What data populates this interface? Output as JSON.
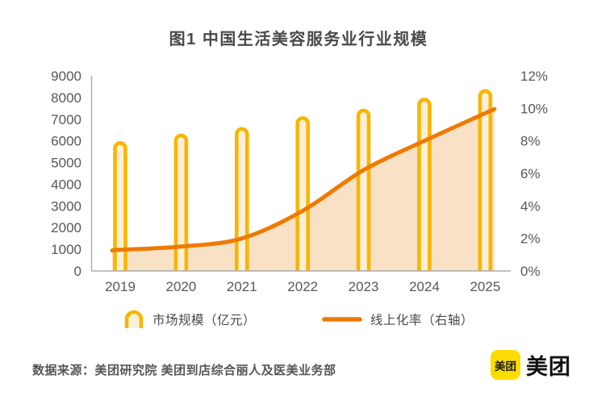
{
  "page": {
    "background": "#FFFFFF"
  },
  "header": {
    "title": "图1  中国生活美容服务业行业规模"
  },
  "chart_data": {
    "type": "combo",
    "title": "图1  中国生活美容服务业行业规模",
    "categories": [
      "2019",
      "2020",
      "2021",
      "2022",
      "2023",
      "2024",
      "2025"
    ],
    "series": [
      {
        "name": "市场规模（亿元）",
        "type": "bar",
        "axis": "left",
        "unit": "亿元",
        "values": [
          5900,
          6250,
          6550,
          7050,
          7400,
          7900,
          8300
        ]
      },
      {
        "name": "线上化率（右轴）",
        "type": "line",
        "axis": "right",
        "unit": "%",
        "values": [
          1.3,
          1.5,
          2.0,
          3.7,
          6.2,
          8.0,
          9.7
        ]
      }
    ],
    "left_axis": {
      "min": 0,
      "max": 9000,
      "step": 1000,
      "tick_labels": [
        "0",
        "1000",
        "2000",
        "3000",
        "4000",
        "5000",
        "6000",
        "7000",
        "8000",
        "9000"
      ]
    },
    "right_axis": {
      "min": 0,
      "max": 12,
      "step": 2,
      "tick_labels": [
        "0%",
        "2%",
        "4%",
        "6%",
        "8%",
        "10%",
        "12%"
      ]
    },
    "grid": false,
    "legend_position": "bottom"
  },
  "legend": {
    "items": [
      {
        "label": "市场规模（亿元）",
        "swatch": "bar-arch-icon"
      },
      {
        "label": "线上化率（右轴）",
        "swatch": "line-icon"
      }
    ]
  },
  "footer": {
    "source": "数据来源：美团研究院  美团到店综合丽人及医美业务部",
    "logo": {
      "badge_text": "美团",
      "brand_text": "美团"
    }
  },
  "colors": {
    "bar_stroke": "#F8B500",
    "bar_fill": "#FCEFD5",
    "line": "#EE7A00",
    "area_fill": "#F8E1C5",
    "axis_line": "#ACACAC",
    "tick_text": "#595757",
    "title_text": "#4C4948",
    "legend_text": "#4C4948",
    "source_text": "#565656",
    "logo_yellow": "#FFDC00",
    "logo_text": "#1A1A1A"
  }
}
